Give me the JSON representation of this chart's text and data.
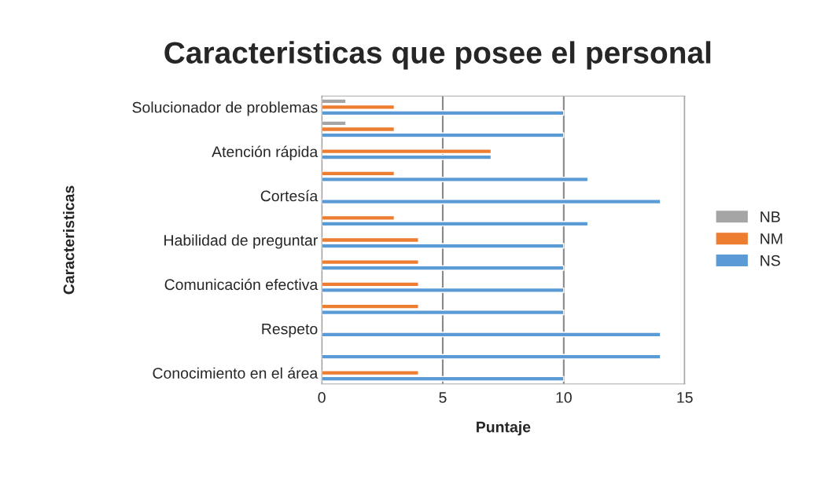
{
  "chart_data": {
    "type": "bar",
    "orientation": "horizontal",
    "title": "Caracteristicas que posee el personal",
    "xlabel": "Puntaje",
    "ylabel": "Caracteristicas",
    "categories": [
      "Solucionador de problemas",
      null,
      "Atención rápida",
      null,
      "Cortesía",
      null,
      "Habilidad de preguntar",
      null,
      "Comunicación efectiva",
      null,
      "Respeto",
      null,
      "Conocimiento en el área"
    ],
    "series": [
      {
        "name": "NB",
        "color": "#a5a5a5",
        "values": [
          1,
          1,
          0,
          0,
          0,
          0,
          0,
          0,
          0,
          0,
          0,
          0,
          0
        ]
      },
      {
        "name": "NM",
        "color": "#ed7d31",
        "values": [
          3,
          3,
          7,
          3,
          0,
          3,
          4,
          4,
          4,
          4,
          0,
          0,
          4
        ]
      },
      {
        "name": "NS",
        "color": "#5b9bd5",
        "values": [
          10,
          10,
          7,
          11,
          14,
          11,
          10,
          10,
          10,
          10,
          14,
          14,
          10
        ]
      }
    ],
    "xlim": [
      0,
      15
    ],
    "xticks": [
      0,
      5,
      10,
      15
    ],
    "grid": "x",
    "legend": "right"
  }
}
